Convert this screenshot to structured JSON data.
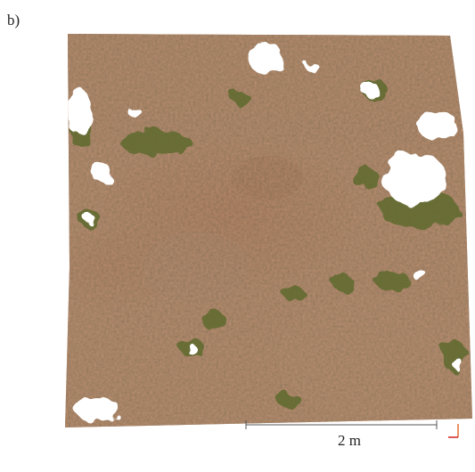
{
  "panel_label": "b)",
  "scale_bar": {
    "label": "2 m"
  }
}
